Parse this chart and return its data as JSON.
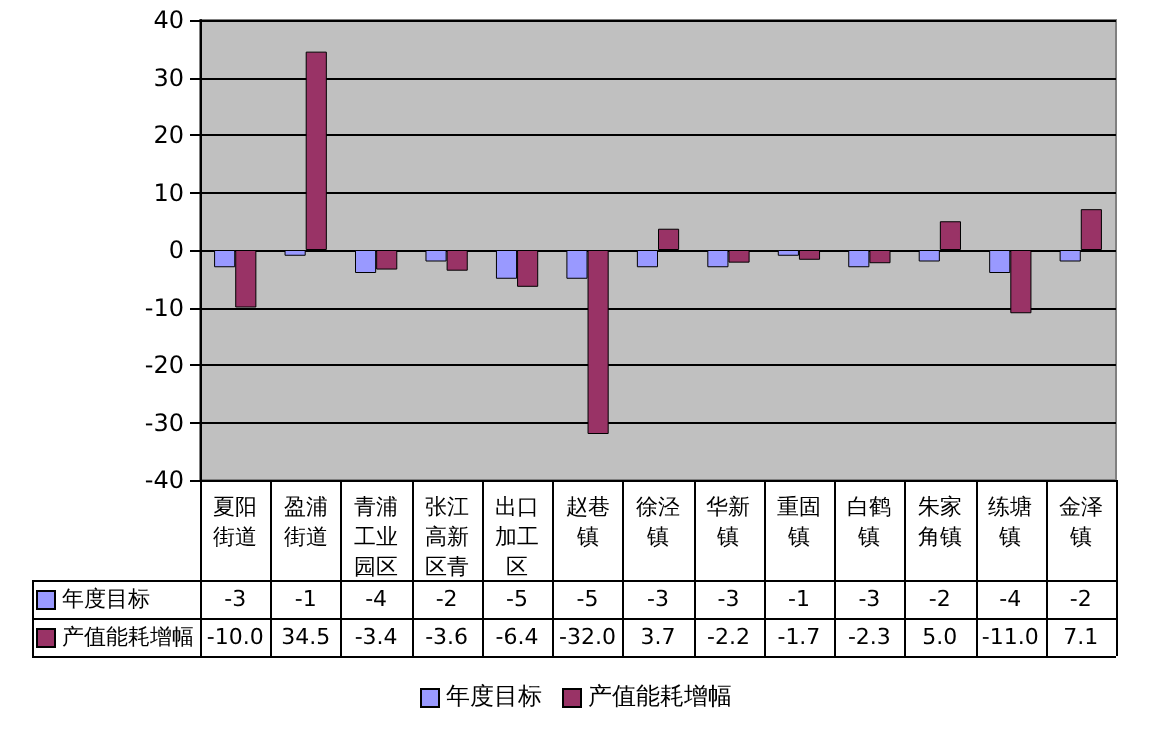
{
  "chart_data": {
    "type": "bar",
    "categories": [
      "夏阳街道",
      "盈浦街道",
      "青浦工业园区",
      "张江高新区青",
      "出口加工区",
      "赵巷镇",
      "徐泾镇",
      "华新镇",
      "重固镇",
      "白鹤镇",
      "朱家角镇",
      "练塘镇",
      "金泽镇"
    ],
    "series": [
      {
        "name": "年度目标",
        "color": "#9999ff",
        "values": [
          -3,
          -1,
          -4,
          -2,
          -5,
          -5,
          -3,
          -3,
          -1,
          -3,
          -2,
          -4,
          -2
        ],
        "value_labels": [
          "-3",
          "-1",
          "-4",
          "-2",
          "-5",
          "-5",
          "-3",
          "-3",
          "-1",
          "-3",
          "-2",
          "-4",
          "-2"
        ]
      },
      {
        "name": "产值能耗增幅",
        "color": "#993366",
        "values": [
          -10,
          34.5,
          -3.4,
          -3.6,
          -6.4,
          -32,
          3.7,
          -2.2,
          -1.7,
          -2.3,
          5,
          -11,
          7.1
        ],
        "value_labels": [
          "-10.0",
          "34.5",
          "-3.4",
          "-3.6",
          "-6.4",
          "-32.0",
          "3.7",
          "-2.2",
          "-1.7",
          "-2.3",
          "5.0",
          "-11.0",
          "7.1"
        ]
      }
    ],
    "ylim": [
      -40,
      40
    ],
    "yticks": [
      -40,
      -30,
      -20,
      -10,
      0,
      10,
      20,
      30,
      40
    ],
    "grid": "y",
    "legend": "bottom"
  }
}
